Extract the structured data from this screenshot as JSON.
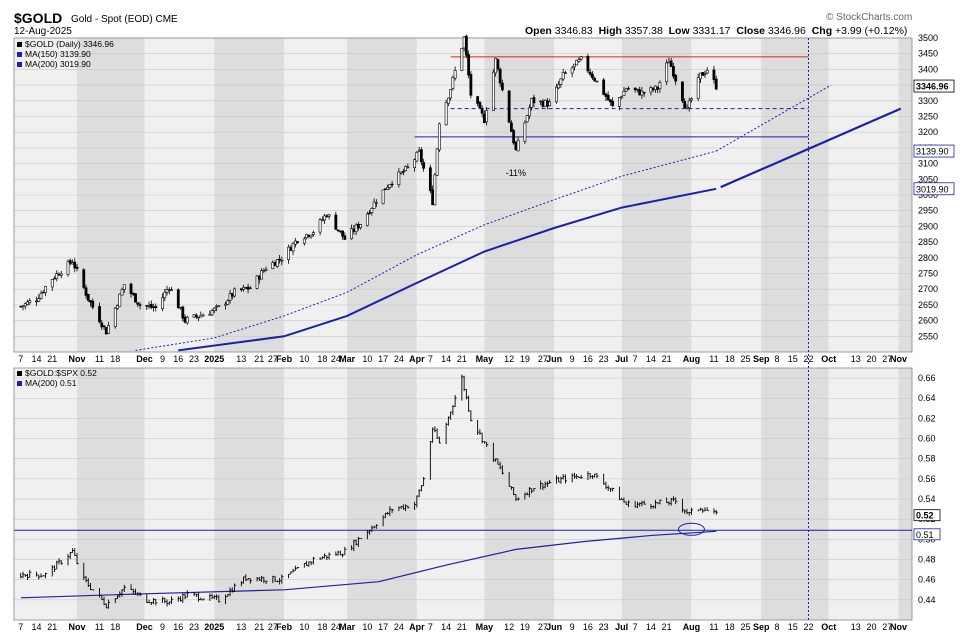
{
  "header": {
    "symbol": "$GOLD",
    "description": "Gold - Spot (EOD)",
    "exchange": "CME",
    "date": "12-Aug-2025",
    "copyright": "© StockCharts.com",
    "ohlc": {
      "open_label": "Open",
      "open": "3346.83",
      "high_label": "High",
      "high": "3357.38",
      "low_label": "Low",
      "low": "3331.17",
      "close_label": "Close",
      "close": "3346.96",
      "chg_label": "Chg",
      "chg": "+3.99 (+0.12%)"
    }
  },
  "colors": {
    "price": "#000000",
    "ma": "#1f1fa8",
    "resistance": "#e02020",
    "support": "#1f1fa8",
    "band_light": "#f0f0f0",
    "band_dark": "#dddddd"
  },
  "chart_data": [
    {
      "type": "candlestick",
      "legend": [
        "$GOLD (Daily) 3346.96",
        "MA(150) 3139.90",
        "MA(200) 3019.90"
      ],
      "legend_placement": "top-left",
      "ylim": [
        2500,
        3500
      ],
      "yticks": [
        2550,
        2600,
        2650,
        2700,
        2750,
        2800,
        2850,
        2900,
        2950,
        3000,
        3050,
        3100,
        3150,
        3200,
        3250,
        3300,
        3350,
        3400,
        3450,
        3500
      ],
      "value_tags": [
        "3346.96",
        "3139.90",
        "3019.90"
      ],
      "annotation": "-11%",
      "resistance": 3440,
      "support_dashed": 3275,
      "support": 3185,
      "price_points": [
        [
          "2024-10-07",
          2645
        ],
        [
          "2024-10-14",
          2670
        ],
        [
          "2024-10-21",
          2735
        ],
        [
          "2024-10-30",
          2790
        ],
        [
          "2024-11-06",
          2670
        ],
        [
          "2024-11-14",
          2565
        ],
        [
          "2024-11-22",
          2715
        ],
        [
          "2024-11-29",
          2650
        ],
        [
          "2024-12-06",
          2640
        ],
        [
          "2024-12-12",
          2710
        ],
        [
          "2024-12-19",
          2600
        ],
        [
          "2024-12-27",
          2620
        ],
        [
          "2025-01-03",
          2640
        ],
        [
          "2025-01-10",
          2690
        ],
        [
          "2025-01-17",
          2705
        ],
        [
          "2025-01-24",
          2770
        ],
        [
          "2025-01-31",
          2800
        ],
        [
          "2025-02-07",
          2860
        ],
        [
          "2025-02-14",
          2885
        ],
        [
          "2025-02-20",
          2940
        ],
        [
          "2025-02-28",
          2860
        ],
        [
          "2025-03-07",
          2910
        ],
        [
          "2025-03-14",
          2985
        ],
        [
          "2025-03-20",
          3040
        ],
        [
          "2025-03-28",
          3085
        ],
        [
          "2025-04-02",
          3135
        ],
        [
          "2025-04-08",
          2980
        ],
        [
          "2025-04-11",
          3235
        ],
        [
          "2025-04-16",
          3340
        ],
        [
          "2025-04-22",
          3500
        ],
        [
          "2025-04-25",
          3320
        ],
        [
          "2025-05-01",
          3240
        ],
        [
          "2025-05-06",
          3430
        ],
        [
          "2025-05-15",
          3140
        ],
        [
          "2025-05-22",
          3300
        ],
        [
          "2025-05-30",
          3290
        ],
        [
          "2025-06-05",
          3380
        ],
        [
          "2025-06-13",
          3430
        ],
        [
          "2025-06-20",
          3360
        ],
        [
          "2025-06-27",
          3280
        ],
        [
          "2025-07-03",
          3340
        ],
        [
          "2025-07-10",
          3325
        ],
        [
          "2025-07-17",
          3340
        ],
        [
          "2025-07-22",
          3430
        ],
        [
          "2025-07-30",
          3270
        ],
        [
          "2025-08-05",
          3380
        ],
        [
          "2025-08-08",
          3400
        ],
        [
          "2025-08-12",
          3346.96
        ]
      ],
      "ma150": [
        [
          "2024-11-27",
          2505
        ],
        [
          "2025-01-01",
          2545
        ],
        [
          "2025-02-01",
          2615
        ],
        [
          "2025-03-01",
          2690
        ],
        [
          "2025-04-01",
          2810
        ],
        [
          "2025-05-01",
          2905
        ],
        [
          "2025-06-01",
          2985
        ],
        [
          "2025-07-01",
          3060
        ],
        [
          "2025-08-12",
          3139.9
        ]
      ],
      "ma200": [
        [
          "2024-12-16",
          2505
        ],
        [
          "2025-02-01",
          2550
        ],
        [
          "2025-03-01",
          2615
        ],
        [
          "2025-04-01",
          2720
        ],
        [
          "2025-05-01",
          2820
        ],
        [
          "2025-06-01",
          2895
        ],
        [
          "2025-07-01",
          2960
        ],
        [
          "2025-08-12",
          3019.9
        ]
      ],
      "ma150_projection": [
        [
          "2025-08-12",
          3139.9
        ],
        [
          "2025-10-02",
          3350
        ]
      ],
      "ma200_projection": [
        [
          "2025-08-12",
          3019.9
        ],
        [
          "2025-11-02",
          3275
        ]
      ]
    },
    {
      "type": "line",
      "legend": [
        "$GOLD:$SPX 0.52",
        "MA(200) 0.51"
      ],
      "legend_placement": "top-left",
      "ylim": [
        0.42,
        0.67
      ],
      "yticks": [
        0.44,
        0.46,
        0.48,
        0.5,
        0.52,
        0.54,
        0.56,
        0.58,
        0.6,
        0.62,
        0.64,
        0.66
      ],
      "value_tags": [
        "0.52",
        "0.51"
      ],
      "support": 0.509,
      "ratio_points": [
        [
          "2024-10-07",
          0.465
        ],
        [
          "2024-10-18",
          0.465
        ],
        [
          "2024-10-30",
          0.488
        ],
        [
          "2024-11-04",
          0.46
        ],
        [
          "2024-11-14",
          0.435
        ],
        [
          "2024-11-22",
          0.452
        ],
        [
          "2024-12-02",
          0.44
        ],
        [
          "2024-12-12",
          0.438
        ],
        [
          "2024-12-20",
          0.445
        ],
        [
          "2025-01-03",
          0.44
        ],
        [
          "2025-01-15",
          0.462
        ],
        [
          "2025-01-31",
          0.46
        ],
        [
          "2025-02-14",
          0.48
        ],
        [
          "2025-02-28",
          0.488
        ],
        [
          "2025-03-10",
          0.508
        ],
        [
          "2025-03-21",
          0.53
        ],
        [
          "2025-03-31",
          0.535
        ],
        [
          "2025-04-04",
          0.56
        ],
        [
          "2025-04-08",
          0.61
        ],
        [
          "2025-04-11",
          0.595
        ],
        [
          "2025-04-21",
          0.66
        ],
        [
          "2025-04-25",
          0.62
        ],
        [
          "2025-05-02",
          0.592
        ],
        [
          "2025-05-08",
          0.57
        ],
        [
          "2025-05-15",
          0.54
        ],
        [
          "2025-05-23",
          0.552
        ],
        [
          "2025-06-05",
          0.56
        ],
        [
          "2025-06-18",
          0.565
        ],
        [
          "2025-06-26",
          0.55
        ],
        [
          "2025-07-03",
          0.535
        ],
        [
          "2025-07-15",
          0.535
        ],
        [
          "2025-07-25",
          0.538
        ],
        [
          "2025-07-31",
          0.525
        ],
        [
          "2025-08-05",
          0.532
        ],
        [
          "2025-08-12",
          0.524
        ]
      ],
      "ma200": [
        [
          "2024-10-07",
          0.442
        ],
        [
          "2024-12-01",
          0.446
        ],
        [
          "2025-02-01",
          0.45
        ],
        [
          "2025-03-15",
          0.458
        ],
        [
          "2025-04-15",
          0.475
        ],
        [
          "2025-05-15",
          0.49
        ],
        [
          "2025-06-15",
          0.498
        ],
        [
          "2025-07-15",
          0.504
        ],
        [
          "2025-08-12",
          0.508
        ]
      ],
      "highlight": [
        "2025-08-01",
        0.51
      ]
    }
  ],
  "x_axis": {
    "ticks": [
      [
        "2024-10-07",
        "7"
      ],
      [
        "2024-10-14",
        "14"
      ],
      [
        "2024-10-21",
        "21"
      ],
      [
        "2024-11-01",
        "Nov"
      ],
      [
        "2024-11-11",
        "11"
      ],
      [
        "2024-11-18",
        "18"
      ],
      [
        "2024-12-01",
        "Dec"
      ],
      [
        "2024-12-09",
        "9"
      ],
      [
        "2024-12-16",
        "16"
      ],
      [
        "2024-12-23",
        "23"
      ],
      [
        "2025-01-01",
        "2025"
      ],
      [
        "2025-01-13",
        "13"
      ],
      [
        "2025-01-21",
        "21"
      ],
      [
        "2025-01-27",
        "27"
      ],
      [
        "2025-02-01",
        "Feb"
      ],
      [
        "2025-02-10",
        "10"
      ],
      [
        "2025-02-18",
        "18"
      ],
      [
        "2025-02-24",
        "24"
      ],
      [
        "2025-03-01",
        "Mar"
      ],
      [
        "2025-03-10",
        "10"
      ],
      [
        "2025-03-17",
        "17"
      ],
      [
        "2025-03-24",
        "24"
      ],
      [
        "2025-04-01",
        "Apr"
      ],
      [
        "2025-04-07",
        "7"
      ],
      [
        "2025-04-14",
        "14"
      ],
      [
        "2025-04-21",
        "21"
      ],
      [
        "2025-05-01",
        "May"
      ],
      [
        "2025-05-12",
        "12"
      ],
      [
        "2025-05-19",
        "19"
      ],
      [
        "2025-05-27",
        "27"
      ],
      [
        "2025-06-01",
        "Jun"
      ],
      [
        "2025-06-09",
        "9"
      ],
      [
        "2025-06-16",
        "16"
      ],
      [
        "2025-06-23",
        "23"
      ],
      [
        "2025-07-01",
        "Jul"
      ],
      [
        "2025-07-07",
        "7"
      ],
      [
        "2025-07-14",
        "14"
      ],
      [
        "2025-07-21",
        "21"
      ],
      [
        "2025-08-01",
        "Aug"
      ],
      [
        "2025-08-11",
        "11"
      ],
      [
        "2025-08-18",
        "18"
      ],
      [
        "2025-08-25",
        "25"
      ],
      [
        "2025-09-01",
        "Sep"
      ],
      [
        "2025-09-08",
        "8"
      ],
      [
        "2025-09-15",
        "15"
      ],
      [
        "2025-09-22",
        "22"
      ],
      [
        "2025-10-01",
        "Oct"
      ],
      [
        "2025-10-13",
        "13"
      ],
      [
        "2025-10-20",
        "20"
      ],
      [
        "2025-10-27",
        "27"
      ],
      [
        "2025-11-01",
        "Nov"
      ]
    ],
    "month_bands": [
      [
        "2024-10-01",
        "light"
      ],
      [
        "2024-11-01",
        "dark"
      ],
      [
        "2024-12-01",
        "light"
      ],
      [
        "2025-01-01",
        "dark"
      ],
      [
        "2025-02-01",
        "light"
      ],
      [
        "2025-03-01",
        "dark"
      ],
      [
        "2025-04-01",
        "light"
      ],
      [
        "2025-05-01",
        "dark"
      ],
      [
        "2025-06-01",
        "light"
      ],
      [
        "2025-07-01",
        "dark"
      ],
      [
        "2025-08-01",
        "light"
      ],
      [
        "2025-09-01",
        "dark"
      ],
      [
        "2025-10-01",
        "light"
      ],
      [
        "2025-11-01",
        "dark"
      ]
    ],
    "marker": "2025-09-22"
  }
}
